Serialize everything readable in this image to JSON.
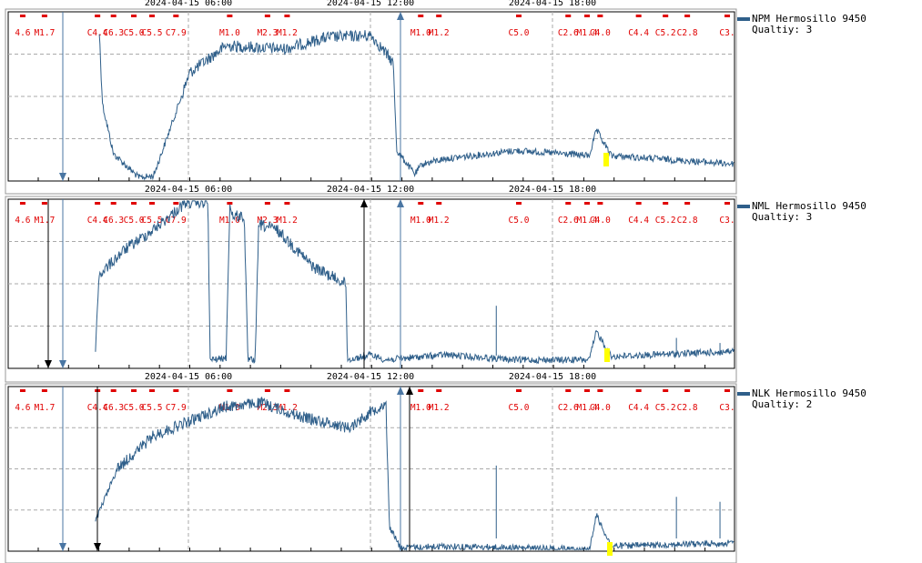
{
  "colors": {
    "trace": "#2f5f8a",
    "event": "#e00000",
    "pick": "#ffff00",
    "grid": "#aaaaaa",
    "black_arrow": "#000000",
    "blue_arrow": "#4a76a3"
  },
  "time_labels": [
    "2024-04-15 06:00",
    "2024-04-15 12:00",
    "2024-04-15 18:00"
  ],
  "event_labels": [
    {
      "text": "4.6",
      "t": 0.02
    },
    {
      "text": "M1.7",
      "t": 0.05
    },
    {
      "text": "C4.4",
      "t": 0.123
    },
    {
      "text": "C6.3",
      "t": 0.145
    },
    {
      "text": "C5.0",
      "t": 0.173
    },
    {
      "text": "C5.5",
      "t": 0.198
    },
    {
      "text": "C7.9",
      "t": 0.231
    },
    {
      "text": "M1.0",
      "t": 0.305
    },
    {
      "text": "M2.3",
      "t": 0.357
    },
    {
      "text": "M1.2",
      "t": 0.384
    },
    {
      "text": "M1.0",
      "t": 0.568
    },
    {
      "text": "M1.2",
      "t": 0.593
    },
    {
      "text": "C5.0",
      "t": 0.703
    },
    {
      "text": "C2.6",
      "t": 0.771
    },
    {
      "text": "M1.4",
      "t": 0.797
    },
    {
      "text": "C4.0",
      "t": 0.815
    },
    {
      "text": "C4.4",
      "t": 0.868
    },
    {
      "text": "C5.2",
      "t": 0.905
    },
    {
      "text": "C2.8",
      "t": 0.935
    },
    {
      "text": "C3.",
      "t": 0.99
    }
  ],
  "chart_data": [
    {
      "type": "line",
      "station": "NPM Hermosillo 9450",
      "quality": "Qualtiy: 3",
      "x_ticks": [
        "2024-04-15 06:00",
        "2024-04-15 12:00",
        "2024-04-15 18:00"
      ],
      "series": [
        {
          "name": "NPM Hermosillo 9450",
          "profile": [
            [
              0.125,
              0.08
            ],
            [
              0.13,
              0.55
            ],
            [
              0.145,
              0.84
            ],
            [
              0.18,
              0.98
            ],
            [
              0.2,
              0.97
            ],
            [
              0.21,
              0.85
            ],
            [
              0.25,
              0.36
            ],
            [
              0.3,
              0.2
            ],
            [
              0.38,
              0.22
            ],
            [
              0.44,
              0.15
            ],
            [
              0.5,
              0.14
            ],
            [
              0.53,
              0.3
            ],
            [
              0.535,
              0.82
            ],
            [
              0.56,
              0.96
            ],
            [
              0.57,
              0.9
            ],
            [
              0.6,
              0.87
            ],
            [
              0.7,
              0.82
            ],
            [
              0.8,
              0.85
            ],
            [
              0.81,
              0.7
            ],
            [
              0.83,
              0.85
            ],
            [
              1.0,
              0.9
            ]
          ]
        }
      ]
    },
    {
      "type": "line",
      "station": "NML Hermosillo 9450",
      "quality": "Qualtiy: 3",
      "x_ticks": [
        "2024-04-15 06:00",
        "2024-04-15 12:00",
        "2024-04-15 18:00"
      ],
      "series": [
        {
          "name": "NML Hermosillo 9450",
          "profile": [
            [
              0.12,
              0.9
            ],
            [
              0.125,
              0.45
            ],
            [
              0.16,
              0.3
            ],
            [
              0.2,
              0.18
            ],
            [
              0.245,
              0.02
            ],
            [
              0.275,
              0.02
            ],
            [
              0.278,
              0.95
            ],
            [
              0.3,
              0.94
            ],
            [
              0.305,
              0.05
            ],
            [
              0.31,
              0.1
            ],
            [
              0.325,
              0.1
            ],
            [
              0.33,
              0.95
            ],
            [
              0.34,
              0.95
            ],
            [
              0.345,
              0.15
            ],
            [
              0.37,
              0.18
            ],
            [
              0.42,
              0.4
            ],
            [
              0.465,
              0.5
            ],
            [
              0.467,
              0.95
            ],
            [
              0.5,
              0.92
            ],
            [
              0.52,
              0.95
            ],
            [
              0.6,
              0.92
            ],
            [
              0.7,
              0.95
            ],
            [
              0.8,
              0.95
            ],
            [
              0.81,
              0.78
            ],
            [
              0.83,
              0.93
            ],
            [
              1.0,
              0.9
            ]
          ]
        }
      ]
    },
    {
      "type": "line",
      "station": "NLK Hermosillo 9450",
      "quality": "Qualtiy: 2",
      "x_ticks": [
        "2024-04-15 06:00",
        "2024-04-15 12:00",
        "2024-04-15 18:00"
      ],
      "series": [
        {
          "name": "NLK Hermosillo 9450",
          "profile": [
            [
              0.12,
              0.82
            ],
            [
              0.15,
              0.5
            ],
            [
              0.2,
              0.3
            ],
            [
              0.3,
              0.12
            ],
            [
              0.35,
              0.1
            ],
            [
              0.4,
              0.18
            ],
            [
              0.47,
              0.25
            ],
            [
              0.5,
              0.15
            ],
            [
              0.52,
              0.1
            ],
            [
              0.525,
              0.85
            ],
            [
              0.54,
              0.98
            ],
            [
              0.6,
              0.97
            ],
            [
              0.7,
              0.98
            ],
            [
              0.8,
              0.99
            ],
            [
              0.81,
              0.78
            ],
            [
              0.83,
              0.97
            ],
            [
              1.0,
              0.95
            ]
          ]
        }
      ]
    }
  ]
}
